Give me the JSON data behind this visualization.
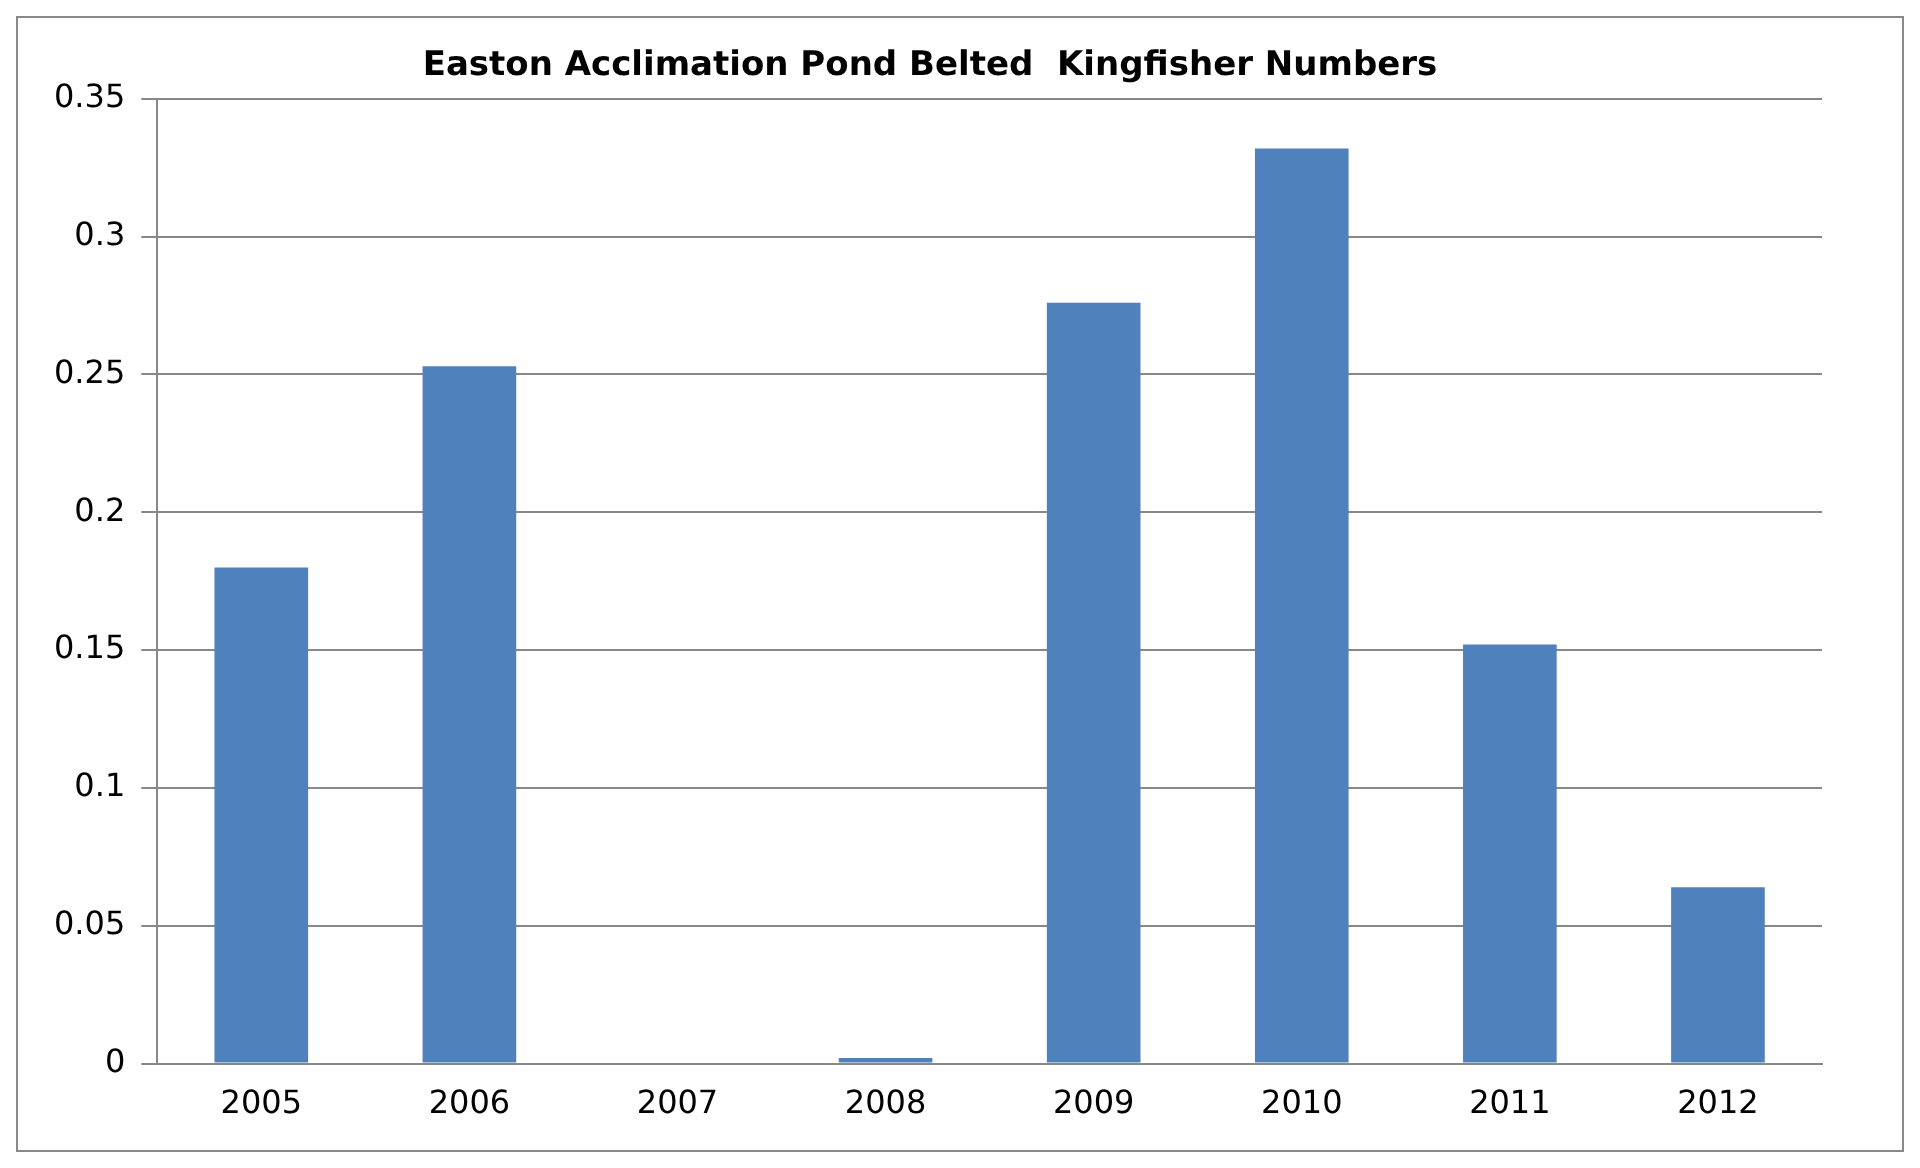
{
  "chart_data": {
    "type": "bar",
    "title": "Easton Acclimation Pond Belted  Kingfisher Numbers",
    "categories": [
      "2005",
      "2006",
      "2007",
      "2008",
      "2009",
      "2010",
      "2011",
      "2012"
    ],
    "values": [
      0.18,
      0.253,
      0,
      0.002,
      0.276,
      0.332,
      0.152,
      0.064
    ],
    "color": "#4f81bd",
    "ylim": [
      0,
      0.35
    ],
    "yticks": [
      0,
      0.05,
      0.1,
      0.15,
      0.2,
      0.25,
      0.3,
      0.35
    ],
    "grid": "y",
    "legend": false
  }
}
